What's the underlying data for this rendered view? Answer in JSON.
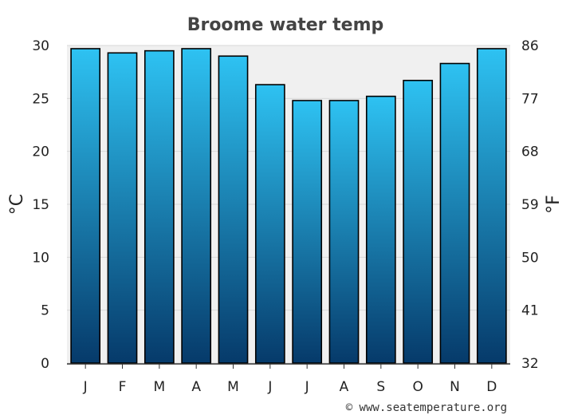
{
  "chart_data": {
    "type": "bar",
    "title": "Broome water temp",
    "categories": [
      "J",
      "F",
      "M",
      "A",
      "M",
      "J",
      "J",
      "A",
      "S",
      "O",
      "N",
      "D"
    ],
    "series": [
      {
        "values": [
          29.7,
          29.3,
          29.5,
          29.7,
          29.0,
          26.3,
          24.8,
          24.8,
          25.2,
          26.7,
          28.3,
          29.7
        ]
      }
    ],
    "ylabel": "°C",
    "y2label": "°F",
    "ylim": [
      0,
      30
    ],
    "yticks": [
      "0",
      "5",
      "10",
      "15",
      "20",
      "25",
      "30"
    ],
    "y2ticks": [
      "32",
      "41",
      "50",
      "59",
      "68",
      "77",
      "86"
    ],
    "grid": true,
    "bar_gradient": {
      "top": "#2ec2f2",
      "bottom": "#063a6a"
    },
    "bar_edge_color": "#000000",
    "plot_background": "#f0f0f0"
  },
  "credit": "© www.seatemperature.org"
}
